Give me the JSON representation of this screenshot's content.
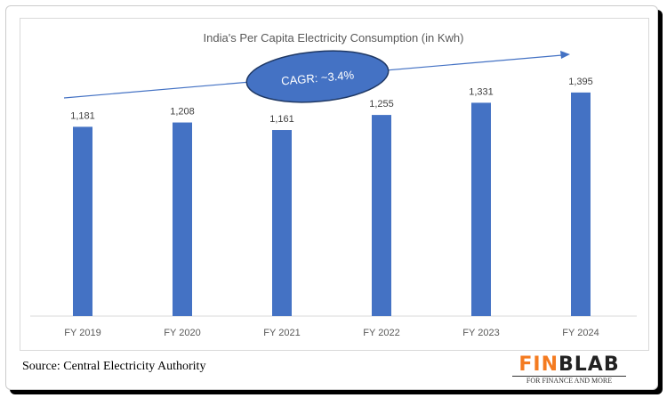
{
  "chart_data": {
    "type": "bar",
    "title": "India's Per Capita Electricity Consumption (in Kwh)",
    "categories": [
      "FY 2019",
      "FY 2020",
      "FY 2021",
      "FY 2022",
      "FY 2023",
      "FY 2024"
    ],
    "values": [
      1181,
      1208,
      1161,
      1255,
      1331,
      1395
    ],
    "value_labels": [
      "1,181",
      "1,208",
      "1,161",
      "1,255",
      "1,331",
      "1,395"
    ],
    "xlabel": "",
    "ylabel": "",
    "ylim": [
      0,
      1600
    ],
    "grid": false,
    "bar_color": "#4472c4",
    "annotation": "CAGR: ~3.4%"
  },
  "source": "Source: Central Electricity Authority",
  "logo": {
    "part1": "FIN",
    "part2": "BLAB",
    "tagline": "FOR FINANCE AND MORE"
  }
}
